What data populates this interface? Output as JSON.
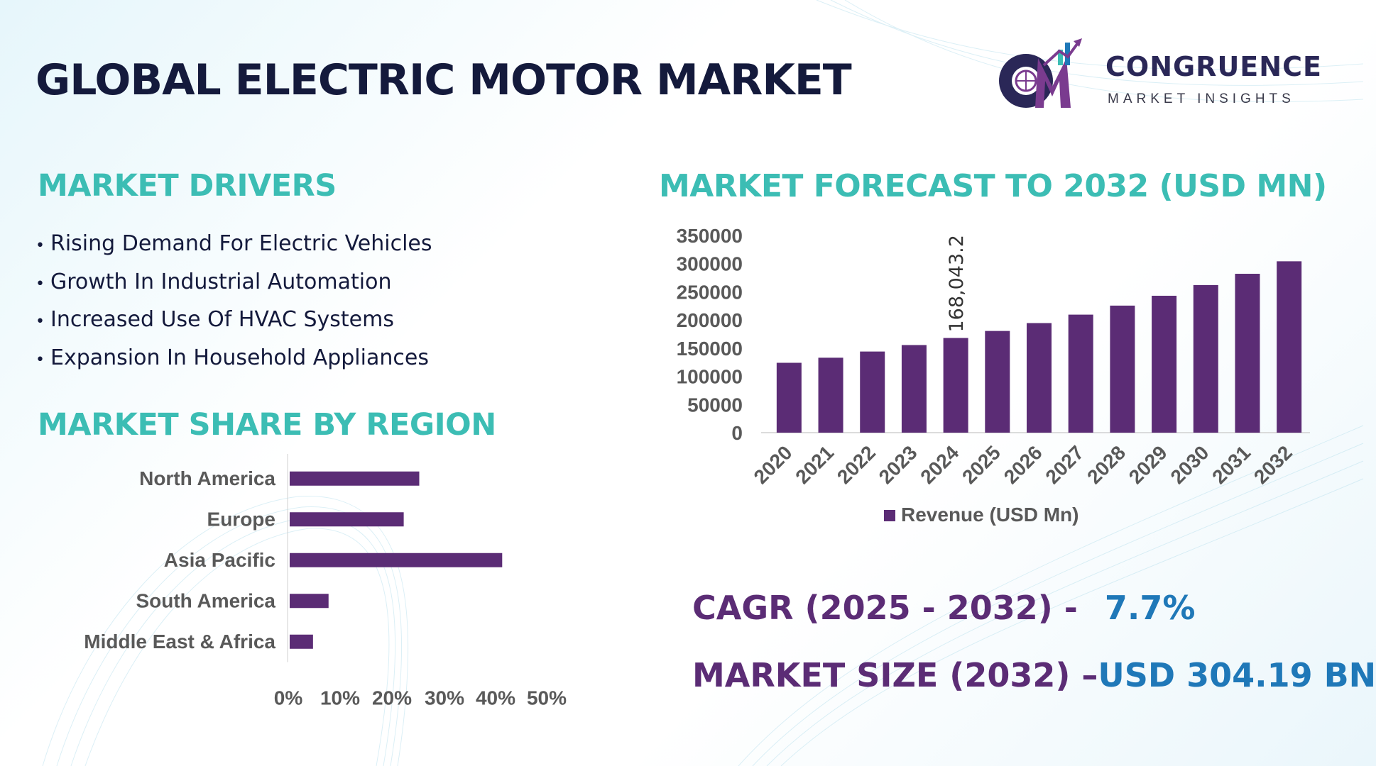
{
  "header": {
    "title": "GLOBAL ELECTRIC MOTOR MARKET",
    "logo_brand": "CONGRUENCE",
    "logo_tagline": "MARKET INSIGHTS"
  },
  "drivers": {
    "title": "MARKET DRIVERS",
    "items": [
      "Rising Demand For Electric Vehicles",
      "Growth In Industrial Automation",
      "Increased Use Of HVAC Systems",
      "Expansion In Household Appliances"
    ]
  },
  "region": {
    "title": "MARKET SHARE BY REGION"
  },
  "forecast": {
    "title": "MARKET FORECAST TO 2032 (USD MN)"
  },
  "stats": {
    "cagr_label": "CAGR (2025 - 2032) -",
    "cagr_value": "7.7%",
    "size_label": "MARKET SIZE (2032) –",
    "size_value": "USD 304.19 BN"
  },
  "colors": {
    "bar": "#5b2c75",
    "heading_teal": "#3cbdb4",
    "stat_purple": "#5b2c75",
    "stat_blue": "#1f78b8"
  },
  "chart_data": [
    {
      "type": "bar",
      "orientation": "horizontal",
      "categories": [
        "North America",
        "Europe",
        "Asia Pacific",
        "South America",
        "Middle East & Africa"
      ],
      "values": [
        25,
        22,
        41,
        7.5,
        4.5
      ],
      "xlim": [
        0,
        50
      ],
      "xticks": [
        "0%",
        "10%",
        "20%",
        "30%",
        "40%",
        "50%"
      ],
      "grid": false,
      "legend": "none"
    },
    {
      "type": "bar",
      "categories": [
        "2020",
        "2021",
        "2022",
        "2023",
        "2024",
        "2025",
        "2026",
        "2027",
        "2028",
        "2029",
        "2030",
        "2031",
        "2032"
      ],
      "series": [
        {
          "name": "Revenue (USD Mn)",
          "values": [
            124000,
            133000,
            144000,
            155500,
            168043.2,
            180500,
            194500,
            209500,
            225500,
            243000,
            262000,
            282000,
            304190
          ]
        }
      ],
      "data_labels": [
        {
          "category": "2024",
          "text": "168,043.2"
        }
      ],
      "ylim": [
        0,
        350000
      ],
      "yticks": [
        "0",
        "50000",
        "100000",
        "150000",
        "200000",
        "250000",
        "300000",
        "350000"
      ],
      "grid": false,
      "legend": "bottom"
    }
  ]
}
